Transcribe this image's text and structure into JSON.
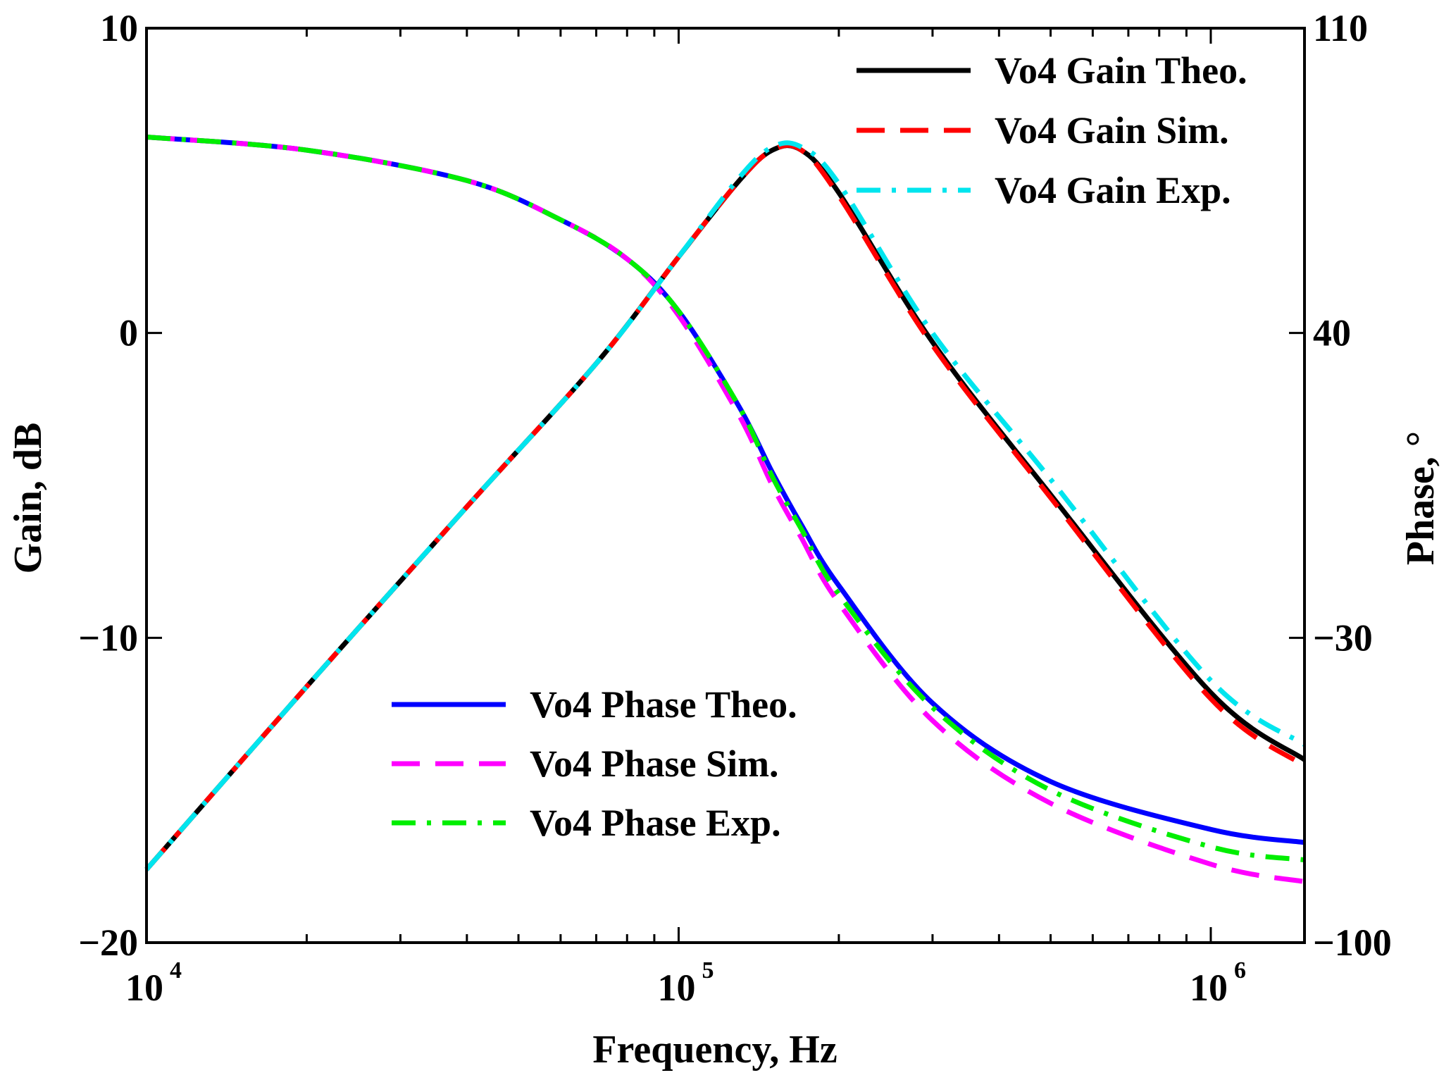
{
  "chart_data": {
    "type": "line",
    "xscale": "log",
    "xlabel": "Frequency, Hz",
    "ylabel_left": "Gain, dB",
    "ylabel_right": "Phase, °",
    "xlim": [
      10000,
      1500000
    ],
    "ylim_left": [
      -20,
      10
    ],
    "ylim_right": [
      -100,
      110
    ],
    "x_ticks": [
      {
        "value": 10000,
        "base": "10",
        "exp": "4"
      },
      {
        "value": 100000,
        "base": "10",
        "exp": "5"
      },
      {
        "value": 1000000,
        "base": "10",
        "exp": "6"
      }
    ],
    "y_left_ticks": [
      {
        "value": 10,
        "label": "10"
      },
      {
        "value": 0,
        "label": "0"
      },
      {
        "value": -10,
        "label": "−10"
      },
      {
        "value": -20,
        "label": "−20"
      }
    ],
    "y_right_ticks": [
      {
        "value": 110,
        "label": "110"
      },
      {
        "value": 40,
        "label": "40"
      },
      {
        "value": -30,
        "label": "−30"
      },
      {
        "value": -100,
        "label": "−100"
      }
    ],
    "legend_gain_position": "top-right",
    "legend_phase_position": "bottom-center",
    "series": [
      {
        "name": "Vo4 Gain Theo.",
        "axis": "left",
        "color": "#000000",
        "dash": "solid",
        "x": [
          10000,
          20000,
          40000,
          70000,
          100000,
          130000,
          150000,
          170000,
          200000,
          300000,
          500000,
          1000000,
          1500000
        ],
        "y": [
          -17.6,
          -11.6,
          -5.7,
          -1.0,
          2.5,
          5.0,
          6.0,
          6.0,
          4.6,
          -0.3,
          -5.3,
          -11.8,
          -14.0
        ]
      },
      {
        "name": "Vo4 Gain Sim.",
        "axis": "left",
        "color": "#ff0000",
        "dash": "dashed",
        "x": [
          10000,
          20000,
          40000,
          70000,
          100000,
          130000,
          150000,
          170000,
          200000,
          300000,
          500000,
          1000000,
          1500000
        ],
        "y": [
          -17.6,
          -11.6,
          -5.7,
          -1.0,
          2.5,
          5.0,
          6.0,
          6.0,
          4.5,
          -0.4,
          -5.4,
          -12.0,
          -14.2
        ]
      },
      {
        "name": "Vo4 Gain Exp.",
        "axis": "left",
        "color": "#00e5ee",
        "dash": "dashdot",
        "x": [
          10000,
          20000,
          40000,
          70000,
          100000,
          130000,
          150000,
          170000,
          200000,
          300000,
          500000,
          1000000,
          1500000
        ],
        "y": [
          -17.6,
          -11.6,
          -5.7,
          -1.0,
          2.5,
          5.1,
          6.1,
          6.1,
          4.9,
          0.0,
          -4.8,
          -11.4,
          -13.5
        ]
      },
      {
        "name": "Vo4 Phase Theo.",
        "axis": "right",
        "color": "#0000ff",
        "dash": "solid",
        "x": [
          10000,
          20000,
          40000,
          60000,
          80000,
          100000,
          130000,
          150000,
          170000,
          200000,
          300000,
          500000,
          1000000,
          1500000
        ],
        "y": [
          85,
          82,
          75,
          66,
          57,
          45,
          23,
          8,
          -4,
          -18,
          -45,
          -63,
          -74,
          -77
        ]
      },
      {
        "name": "Vo4 Phase Sim.",
        "axis": "right",
        "color": "#ff00ff",
        "dash": "dashed",
        "x": [
          10000,
          20000,
          40000,
          60000,
          80000,
          100000,
          130000,
          150000,
          170000,
          200000,
          300000,
          500000,
          1000000,
          1500000
        ],
        "y": [
          85,
          82,
          75,
          66,
          57,
          44,
          21,
          5,
          -7,
          -22,
          -49,
          -68,
          -82,
          -86
        ]
      },
      {
        "name": "Vo4 Phase Exp.",
        "axis": "right",
        "color": "#00ee00",
        "dash": "dashdot",
        "x": [
          10000,
          20000,
          40000,
          60000,
          80000,
          100000,
          130000,
          150000,
          170000,
          200000,
          300000,
          500000,
          1000000,
          1500000
        ],
        "y": [
          85,
          82,
          75,
          66,
          57,
          45,
          23,
          7,
          -5,
          -20,
          -46,
          -65,
          -78,
          -81
        ]
      }
    ]
  }
}
